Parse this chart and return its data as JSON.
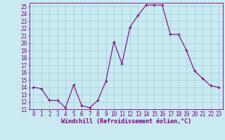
{
  "x": [
    0,
    1,
    2,
    3,
    4,
    5,
    6,
    7,
    8,
    9,
    10,
    11,
    12,
    13,
    14,
    15,
    16,
    17,
    18,
    19,
    20,
    21,
    22,
    23
  ],
  "y": [
    14.0,
    13.8,
    12.2,
    12.2,
    11.2,
    14.3,
    11.5,
    11.2,
    12.2,
    14.8,
    20.2,
    17.2,
    22.2,
    23.8,
    25.2,
    25.2,
    25.2,
    21.2,
    21.2,
    19.0,
    16.2,
    15.2,
    14.2,
    14.0
  ],
  "line_color": "#800080",
  "marker_color": "#800080",
  "bg_color": "#c8eaf0",
  "grid_color": "#9eccd8",
  "xlabel": "Windchill (Refroidissement éolien,°C)",
  "xlabel_color": "#800080",
  "xtick_color": "#800080",
  "ytick_color": "#800080",
  "spine_color": "#800080",
  "ylim": [
    11,
    25.5
  ],
  "xlim": [
    -0.5,
    23.5
  ],
  "yticks": [
    11,
    12,
    13,
    14,
    15,
    16,
    17,
    18,
    19,
    20,
    21,
    22,
    23,
    24,
    25
  ],
  "xticks": [
    0,
    1,
    2,
    3,
    4,
    5,
    6,
    7,
    8,
    9,
    10,
    11,
    12,
    13,
    14,
    15,
    16,
    17,
    18,
    19,
    20,
    21,
    22,
    23
  ],
  "tick_fontsize": 5.5,
  "xlabel_fontsize": 6.0
}
